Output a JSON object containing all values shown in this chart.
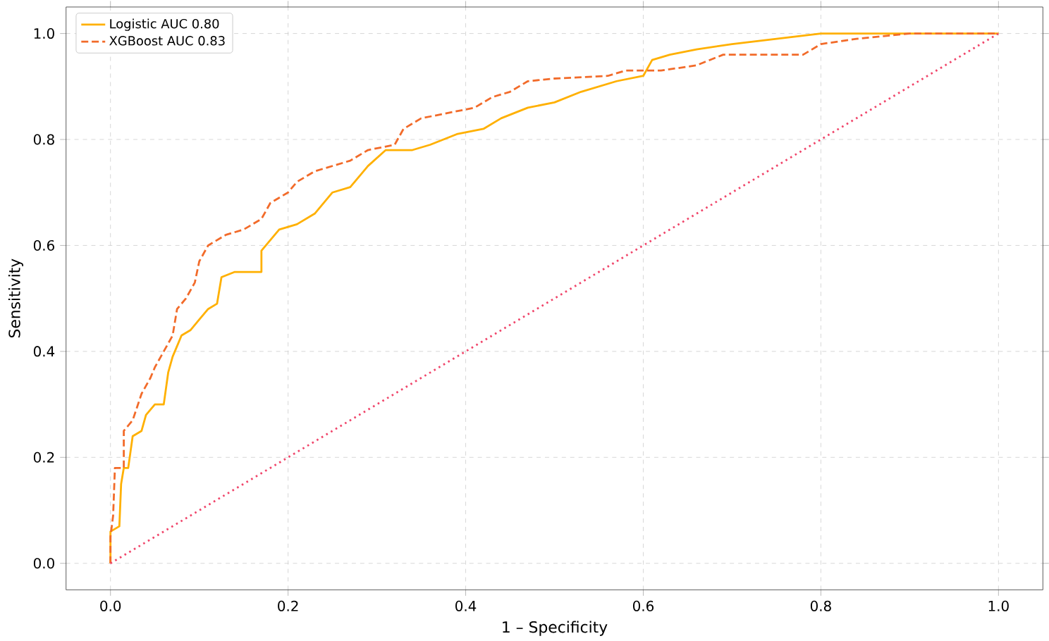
{
  "chart_data": {
    "type": "line",
    "xlabel": "1 – Specificity",
    "ylabel": "Sensitivity",
    "xlim": [
      -0.05,
      1.05
    ],
    "ylim": [
      -0.05,
      1.05
    ],
    "xticks": [
      {
        "value": 0,
        "label": "0.0"
      },
      {
        "value": 0.2,
        "label": "0.2"
      },
      {
        "value": 0.4,
        "label": "0.4"
      },
      {
        "value": 0.6,
        "label": "0.6"
      },
      {
        "value": 0.8,
        "label": "0.8"
      },
      {
        "value": 1,
        "label": "1.0"
      }
    ],
    "yticks": [
      {
        "value": 0,
        "label": "0.0"
      },
      {
        "value": 0.2,
        "label": "0.2"
      },
      {
        "value": 0.4,
        "label": "0.4"
      },
      {
        "value": 0.6,
        "label": "0.6"
      },
      {
        "value": 0.8,
        "label": "0.8"
      },
      {
        "value": 1,
        "label": "1.0"
      }
    ],
    "grid": true,
    "legend": "top left",
    "marker": "none",
    "series": [
      {
        "name": "Logistic AUC 0.80",
        "color": "#ffb000",
        "line_style": "solid",
        "x": [
          0,
          0,
          0.01,
          0.012,
          0.015,
          0.02,
          0.025,
          0.035,
          0.04,
          0.05,
          0.06,
          0.065,
          0.07,
          0.08,
          0.09,
          0.1,
          0.11,
          0.12,
          0.125,
          0.14,
          0.17,
          0.17,
          0.18,
          0.19,
          0.21,
          0.23,
          0.25,
          0.27,
          0.29,
          0.31,
          0.34,
          0.36,
          0.39,
          0.42,
          0.44,
          0.47,
          0.5,
          0.53,
          0.57,
          0.6,
          0.61,
          0.63,
          0.66,
          0.7,
          0.75,
          0.8,
          1
        ],
        "values": [
          0,
          0.06,
          0.07,
          0.15,
          0.18,
          0.18,
          0.24,
          0.25,
          0.28,
          0.3,
          0.3,
          0.36,
          0.39,
          0.43,
          0.44,
          0.46,
          0.48,
          0.49,
          0.54,
          0.55,
          0.55,
          0.59,
          0.61,
          0.63,
          0.64,
          0.66,
          0.7,
          0.71,
          0.75,
          0.78,
          0.78,
          0.79,
          0.81,
          0.82,
          0.84,
          0.86,
          0.87,
          0.89,
          0.91,
          0.92,
          0.95,
          0.96,
          0.97,
          0.98,
          0.99,
          1,
          1
        ]
      },
      {
        "name": "XGBoost AUC 0.83",
        "color": "#f26b2a",
        "line_style": "dashed",
        "x": [
          0,
          0,
          0.003,
          0.005,
          0.015,
          0.015,
          0.025,
          0.035,
          0.045,
          0.05,
          0.06,
          0.07,
          0.075,
          0.085,
          0.095,
          0.1,
          0.11,
          0.13,
          0.15,
          0.17,
          0.18,
          0.2,
          0.21,
          0.23,
          0.25,
          0.27,
          0.29,
          0.32,
          0.33,
          0.35,
          0.38,
          0.41,
          0.43,
          0.45,
          0.47,
          0.5,
          0.56,
          0.58,
          0.62,
          0.66,
          0.69,
          0.78,
          0.8,
          0.84,
          0.9,
          1
        ],
        "values": [
          0,
          0.05,
          0.09,
          0.18,
          0.18,
          0.25,
          0.27,
          0.32,
          0.35,
          0.37,
          0.4,
          0.43,
          0.48,
          0.5,
          0.53,
          0.57,
          0.6,
          0.62,
          0.63,
          0.65,
          0.68,
          0.7,
          0.72,
          0.74,
          0.75,
          0.76,
          0.78,
          0.79,
          0.82,
          0.84,
          0.85,
          0.86,
          0.88,
          0.89,
          0.91,
          0.915,
          0.92,
          0.93,
          0.93,
          0.94,
          0.96,
          0.96,
          0.98,
          0.99,
          1,
          1
        ]
      },
      {
        "color": "#f0456a",
        "line_style": "dotted",
        "x": [
          0,
          1
        ],
        "values": [
          0,
          1
        ]
      }
    ]
  }
}
